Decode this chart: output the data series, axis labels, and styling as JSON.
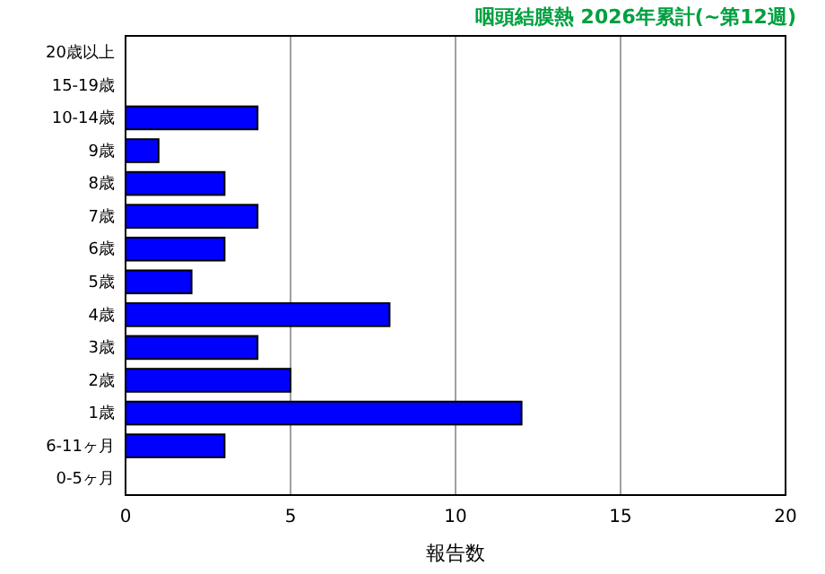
{
  "chart_data": {
    "type": "bar",
    "orientation": "horizontal",
    "title": "咽頭結膜熱 2026年累計(~第12週)",
    "xlabel": "報告数",
    "categories": [
      "20歳以上",
      "15-19歳",
      "10-14歳",
      "9歳",
      "8歳",
      "7歳",
      "6歳",
      "5歳",
      "4歳",
      "3歳",
      "2歳",
      "1歳",
      "6-11ヶ月",
      "0-5ヶ月"
    ],
    "values": [
      0,
      0,
      4,
      1,
      3,
      4,
      3,
      2,
      8,
      4,
      5,
      12,
      3,
      0
    ],
    "color": "#0000ff",
    "xlim": [
      0,
      20
    ],
    "xticks": [
      0,
      5,
      10,
      15,
      20
    ],
    "grid": "x"
  }
}
